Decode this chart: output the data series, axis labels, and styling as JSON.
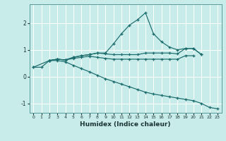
{
  "xlabel": "Humidex (Indice chaleur)",
  "bg_color": "#c8ecea",
  "line_color": "#1a6b6b",
  "grid_color": "#ffffff",
  "xlim": [
    -0.5,
    23.5
  ],
  "ylim": [
    -1.35,
    2.7
  ],
  "x": [
    0,
    1,
    2,
    3,
    4,
    5,
    6,
    7,
    8,
    9,
    10,
    11,
    12,
    13,
    14,
    15,
    16,
    17,
    18,
    19,
    20,
    21,
    22,
    23
  ],
  "line1_x": [
    2,
    3,
    4,
    5,
    6,
    7,
    8,
    9,
    10,
    11,
    12,
    13,
    14,
    15,
    16,
    17,
    18,
    19,
    20,
    21
  ],
  "line1_y": [
    0.6,
    0.65,
    0.62,
    0.72,
    0.78,
    0.82,
    0.88,
    0.85,
    0.82,
    0.82,
    0.82,
    0.82,
    0.88,
    0.88,
    0.88,
    0.88,
    0.85,
    1.05,
    1.05,
    0.82
  ],
  "line2_x": [
    2,
    3,
    4,
    5,
    6,
    7,
    8,
    9,
    10,
    11,
    12,
    13,
    14,
    15,
    16,
    17,
    18,
    19,
    20,
    21
  ],
  "line2_y": [
    0.6,
    0.65,
    0.62,
    0.72,
    0.78,
    0.82,
    0.88,
    0.88,
    1.22,
    1.6,
    1.92,
    2.12,
    2.38,
    1.6,
    1.3,
    1.1,
    1.0,
    1.05,
    1.05,
    0.82
  ],
  "line3_x": [
    0,
    2,
    3,
    4,
    5,
    6,
    7,
    8,
    9,
    10,
    11,
    12,
    13,
    14,
    15,
    16,
    17,
    18,
    19,
    20
  ],
  "line3_y": [
    0.35,
    0.6,
    0.65,
    0.62,
    0.68,
    0.72,
    0.76,
    0.72,
    0.68,
    0.65,
    0.65,
    0.65,
    0.65,
    0.65,
    0.65,
    0.65,
    0.65,
    0.65,
    0.78,
    0.78
  ],
  "line4_x": [
    0,
    1,
    2,
    3,
    4,
    5,
    6,
    7,
    8,
    9,
    10,
    11,
    12,
    13,
    14,
    15,
    16,
    17,
    18,
    19,
    20,
    21,
    22,
    23
  ],
  "line4_y": [
    0.35,
    0.35,
    0.6,
    0.6,
    0.55,
    0.42,
    0.3,
    0.18,
    0.05,
    -0.08,
    -0.18,
    -0.28,
    -0.38,
    -0.48,
    -0.58,
    -0.65,
    -0.7,
    -0.75,
    -0.8,
    -0.85,
    -0.9,
    -1.0,
    -1.15,
    -1.2
  ],
  "yticks": [
    -1,
    0,
    1,
    2
  ],
  "xticks": [
    0,
    1,
    2,
    3,
    4,
    5,
    6,
    7,
    8,
    9,
    10,
    11,
    12,
    13,
    14,
    15,
    16,
    17,
    18,
    19,
    20,
    21,
    22,
    23
  ]
}
